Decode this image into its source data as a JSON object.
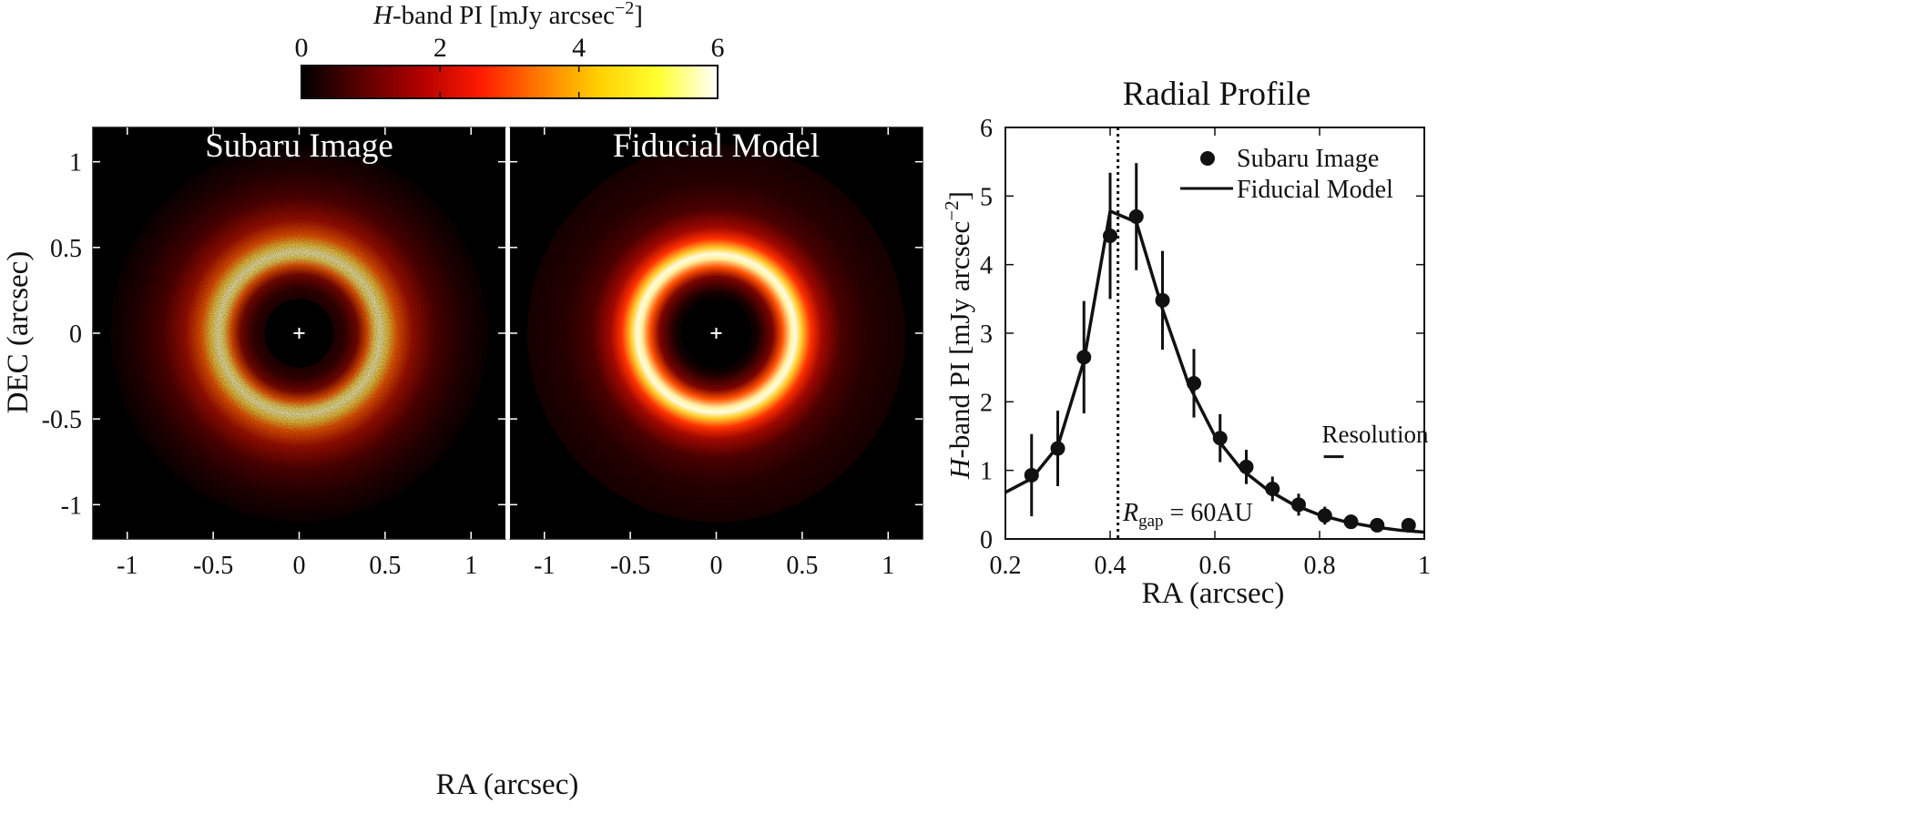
{
  "colorbar": {
    "label_prefix": "H",
    "label_main": "-band PI [mJy arcsec",
    "label_exp": "−2",
    "label_suffix": "]",
    "ticks": [
      "0",
      "2",
      "4",
      "6"
    ],
    "range": [
      0,
      6
    ],
    "colors": [
      "#000000",
      "#5a0000",
      "#b00000",
      "#ff1a00",
      "#ff7a00",
      "#ffd000",
      "#ffff30",
      "#ffffff"
    ]
  },
  "panels": {
    "left_title": "Subaru Image",
    "right_title": "Fiducial Model",
    "xlabel": "RA (arcsec)",
    "ylabel": "DEC (arcsec)",
    "x_ticks": [
      "-1",
      "-0.5",
      "0",
      "0.5",
      "1"
    ],
    "y_ticks": [
      "1",
      "0.5",
      "0",
      "-0.5",
      "-1"
    ],
    "center_marker": "+"
  },
  "profile": {
    "title": "Radial Profile",
    "xlabel": "RA (arcsec)",
    "ylabel_prefix": "H",
    "ylabel_main": "-band PI [mJy arcsec",
    "ylabel_exp": "−2",
    "ylabel_suffix": "]",
    "x_ticks": [
      "0.2",
      "0.4",
      "0.6",
      "0.8",
      "1"
    ],
    "y_ticks": [
      "0",
      "1",
      "2",
      "3",
      "4",
      "5",
      "6"
    ],
    "legend_points": "Subaru Image",
    "legend_line": "Fiducial Model",
    "resolution_label": "Resolution",
    "gap_label_R": "R",
    "gap_label_sub": "gap",
    "gap_label_rest": " = 60AU"
  },
  "chart_data": [
    {
      "type": "heatmap",
      "title": "Subaru Image",
      "xlabel": "RA (arcsec)",
      "ylabel": "DEC (arcsec)",
      "xlim": [
        -1.2,
        1.2
      ],
      "ylim": [
        -1.2,
        1.2
      ],
      "colorbar_range": [
        0,
        6
      ],
      "ring_radius_arcsec": 0.45,
      "mask_radius_arcsec": 0.2
    },
    {
      "type": "heatmap",
      "title": "Fiducial Model",
      "xlabel": "RA (arcsec)",
      "ylabel": "DEC (arcsec)",
      "xlim": [
        -1.2,
        1.2
      ],
      "ylim": [
        -1.2,
        1.2
      ],
      "colorbar_range": [
        0,
        6
      ],
      "ring_radius_arcsec": 0.45,
      "mask_radius_arcsec": 0.2
    },
    {
      "type": "line",
      "title": "Radial Profile",
      "xlabel": "RA (arcsec)",
      "ylabel": "H-band PI [mJy arcsec−2]",
      "xlim": [
        0.2,
        1.0
      ],
      "ylim": [
        0,
        6
      ],
      "gap_radius": 0.415,
      "resolution_bar": [
        0.808,
        0.846,
        1.2
      ],
      "series": [
        {
          "name": "Subaru Image",
          "kind": "points",
          "x": [
            0.25,
            0.3,
            0.35,
            0.4,
            0.45,
            0.5,
            0.56,
            0.61,
            0.66,
            0.71,
            0.76,
            0.81,
            0.86,
            0.91,
            0.97
          ],
          "y": [
            0.93,
            1.32,
            2.65,
            4.42,
            4.7,
            3.48,
            2.27,
            1.47,
            1.05,
            0.73,
            0.5,
            0.34,
            0.25,
            0.2,
            0.2
          ],
          "err": [
            0.6,
            0.55,
            0.82,
            0.92,
            0.78,
            0.72,
            0.5,
            0.35,
            0.25,
            0.18,
            0.16,
            0.13,
            0.1,
            0.09,
            0.07
          ]
        },
        {
          "name": "Fiducial Model",
          "kind": "line",
          "x": [
            0.2,
            0.25,
            0.3,
            0.35,
            0.4,
            0.45,
            0.5,
            0.55,
            0.6,
            0.65,
            0.7,
            0.75,
            0.8,
            0.85,
            0.9,
            0.95,
            1.0
          ],
          "y": [
            0.68,
            0.88,
            1.35,
            2.6,
            4.78,
            4.62,
            3.35,
            2.25,
            1.5,
            1.02,
            0.72,
            0.5,
            0.35,
            0.25,
            0.18,
            0.13,
            0.1
          ]
        }
      ]
    }
  ]
}
